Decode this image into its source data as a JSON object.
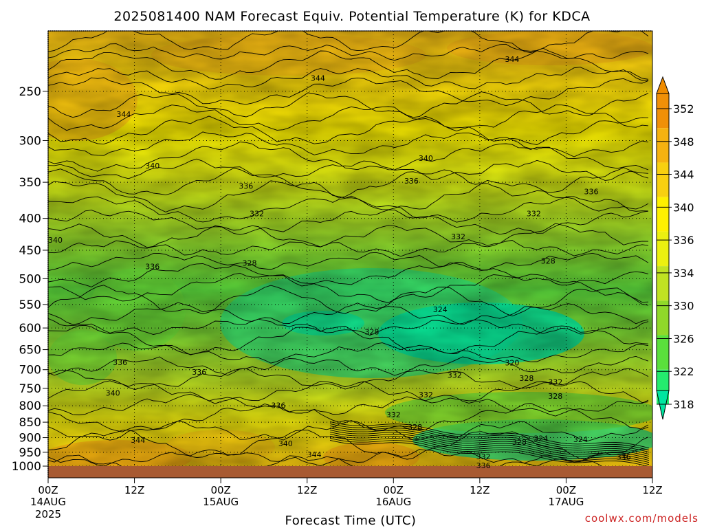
{
  "chart_data": {
    "type": "contour",
    "title": "2025081400 NAM Forecast Equiv. Potential Temperature (K) for KDCA",
    "xlabel": "Forecast Time (UTC)",
    "ylabel": "",
    "y_axis": {
      "scale": "log-pressure",
      "inverted": true,
      "range": [
        1000,
        200
      ],
      "ticks": [
        250,
        300,
        350,
        400,
        450,
        500,
        550,
        600,
        650,
        700,
        750,
        800,
        850,
        900,
        950,
        1000
      ]
    },
    "x_axis": {
      "range_hours": [
        0,
        84
      ],
      "ticks": [
        {
          "hour": 0,
          "line1": "00Z",
          "line2": "14AUG",
          "line3": "2025"
        },
        {
          "hour": 12,
          "line1": "12Z",
          "line2": "",
          "line3": ""
        },
        {
          "hour": 24,
          "line1": "00Z",
          "line2": "15AUG",
          "line3": ""
        },
        {
          "hour": 36,
          "line1": "12Z",
          "line2": "",
          "line3": ""
        },
        {
          "hour": 48,
          "line1": "00Z",
          "line2": "16AUG",
          "line3": ""
        },
        {
          "hour": 60,
          "line1": "12Z",
          "line2": "",
          "line3": ""
        },
        {
          "hour": 72,
          "line1": "00Z",
          "line2": "17AUG",
          "line3": ""
        },
        {
          "hour": 84,
          "line1": "12Z",
          "line2": "",
          "line3": ""
        }
      ]
    },
    "grid": true,
    "colorbar": {
      "levels": [
        318,
        322,
        326,
        330,
        334,
        336,
        340,
        344,
        348,
        352
      ],
      "colors": [
        "#00e8a0",
        "#24ec6e",
        "#5ae03c",
        "#90d82a",
        "#c0e222",
        "#ecf010",
        "#fef000",
        "#f8d010",
        "#f6b210",
        "#f09008"
      ],
      "arrow_top": "#f08c00",
      "arrow_bottom": "#00e6a0"
    },
    "contour_labels": [
      {
        "value": "344",
        "hour": 37.5,
        "pres": 238
      },
      {
        "value": "344",
        "hour": 64.5,
        "pres": 222
      },
      {
        "value": "344",
        "hour": 10.5,
        "pres": 272
      },
      {
        "value": "340",
        "hour": 14.5,
        "pres": 329
      },
      {
        "value": "340",
        "hour": 52.5,
        "pres": 320
      },
      {
        "value": "336",
        "hour": 27.5,
        "pres": 355
      },
      {
        "value": "336",
        "hour": 50.5,
        "pres": 348
      },
      {
        "value": "336",
        "hour": 75.5,
        "pres": 362
      },
      {
        "value": "340",
        "hour": 1.0,
        "pres": 433
      },
      {
        "value": "336",
        "hour": 14.5,
        "pres": 478
      },
      {
        "value": "332",
        "hour": 29.0,
        "pres": 393
      },
      {
        "value": "332",
        "hour": 57.0,
        "pres": 428
      },
      {
        "value": "332",
        "hour": 67.5,
        "pres": 393
      },
      {
        "value": "328",
        "hour": 28.0,
        "pres": 472
      },
      {
        "value": "328",
        "hour": 69.5,
        "pres": 468
      },
      {
        "value": "324",
        "hour": 54.5,
        "pres": 560
      },
      {
        "value": "328",
        "hour": 45.0,
        "pres": 608
      },
      {
        "value": "320",
        "hour": 64.5,
        "pres": 682
      },
      {
        "value": "332",
        "hour": 56.5,
        "pres": 714
      },
      {
        "value": "328",
        "hour": 66.5,
        "pres": 722
      },
      {
        "value": "332",
        "hour": 70.5,
        "pres": 732
      },
      {
        "value": "336",
        "hour": 10.0,
        "pres": 681
      },
      {
        "value": "336",
        "hour": 21.0,
        "pres": 706
      },
      {
        "value": "340",
        "hour": 9.0,
        "pres": 763
      },
      {
        "value": "332",
        "hour": 52.5,
        "pres": 768
      },
      {
        "value": "328",
        "hour": 70.5,
        "pres": 772
      },
      {
        "value": "336",
        "hour": 32.0,
        "pres": 798
      },
      {
        "value": "332",
        "hour": 48.0,
        "pres": 826
      },
      {
        "value": "328",
        "hour": 51.0,
        "pres": 865
      },
      {
        "value": "344",
        "hour": 12.5,
        "pres": 908
      },
      {
        "value": "340",
        "hour": 33.0,
        "pres": 920
      },
      {
        "value": "344",
        "hour": 37.0,
        "pres": 958
      },
      {
        "value": "328",
        "hour": 65.5,
        "pres": 915
      },
      {
        "value": "324",
        "hour": 68.5,
        "pres": 902
      },
      {
        "value": "324",
        "hour": 74.0,
        "pres": 906
      },
      {
        "value": "332",
        "hour": 60.5,
        "pres": 965
      },
      {
        "value": "336",
        "hour": 60.5,
        "pres": 997
      },
      {
        "value": "336",
        "hour": 80.0,
        "pres": 966
      }
    ],
    "ground_band": {
      "color": "#a85a32",
      "from_pres": 1000
    }
  },
  "credit": "coolwx.com/models"
}
